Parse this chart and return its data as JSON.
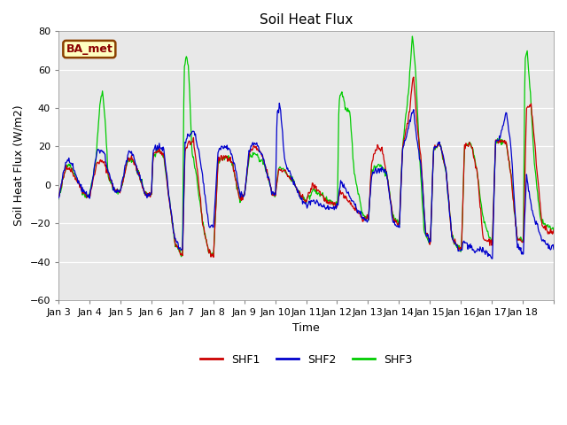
{
  "title": "Soil Heat Flux",
  "ylabel": "Soil Heat Flux (W/m2)",
  "xlabel": "Time",
  "ylim": [
    -60,
    80
  ],
  "yticks": [
    -60,
    -40,
    -20,
    0,
    20,
    40,
    60,
    80
  ],
  "fig_bg": "#ffffff",
  "plot_bg": "#e8e8e8",
  "shf1_color": "#cc0000",
  "shf2_color": "#0000cc",
  "shf3_color": "#00cc00",
  "legend_label": "BA_met",
  "series_labels": [
    "SHF1",
    "SHF2",
    "SHF3"
  ],
  "x_tick_labels": [
    "Jan 3",
    "Jan 4",
    "Jan 5",
    "Jan 6",
    "Jan 7",
    "Jan 8",
    "Jan 9",
    "Jan 10",
    "Jan 11",
    "Jan 12",
    "Jan 13",
    "Jan 14",
    "Jan 15",
    "Jan 16",
    "Jan 17",
    "Jan 18"
  ],
  "n_days": 16,
  "points_per_day": 48
}
